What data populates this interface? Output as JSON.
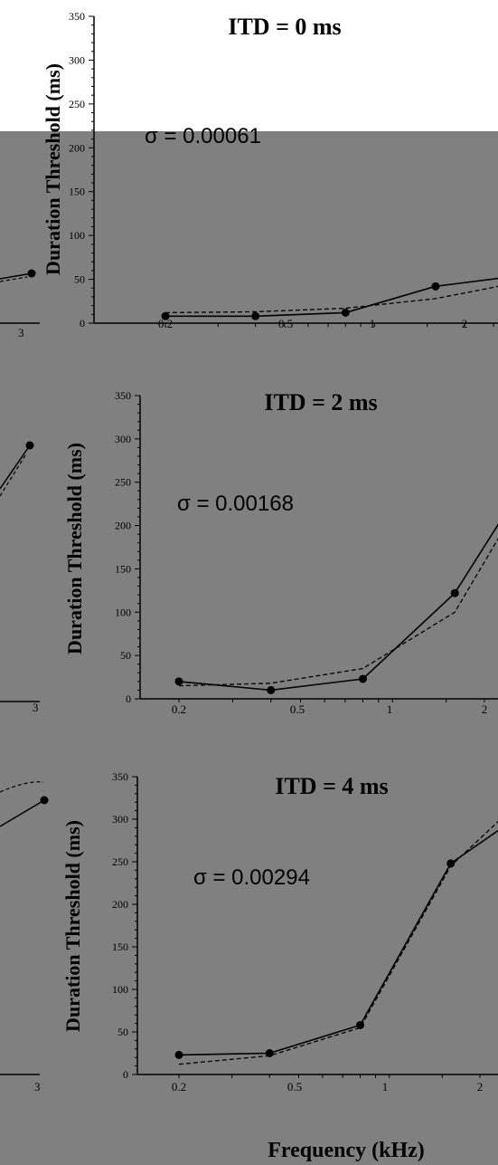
{
  "colors": {
    "panel_bg": "#808080",
    "page_bg": "#ffffff",
    "ink": "#000000"
  },
  "chart_data": [
    {
      "type": "line",
      "title": "ITD = 0 ms",
      "ylabel": "Duration Threshold (ms)",
      "sigma_label": "σ = 0.00061",
      "x_ticks": [
        "0.2",
        "0.5",
        "1",
        "2"
      ],
      "y_ticks": [
        "0",
        "50",
        "100",
        "150",
        "200",
        "250",
        "300",
        "350"
      ],
      "ylim": [
        0,
        350
      ],
      "x_scale": "log",
      "left_fragment_tick": "3",
      "series": [
        {
          "style": "solid",
          "x": [
            0.2,
            0.4,
            0.8,
            1.6,
            3.2
          ],
          "y": [
            8,
            8,
            12,
            42,
            55
          ]
        },
        {
          "style": "dashed",
          "x": [
            0.2,
            0.4,
            0.8,
            1.6,
            3.2
          ],
          "y": [
            12,
            13,
            17,
            28,
            48
          ]
        }
      ]
    },
    {
      "type": "line",
      "title": "ITD = 2 ms",
      "ylabel": "Duration Threshold (ms)",
      "sigma_label": "σ = 0.00168",
      "x_ticks": [
        "0.2",
        "0.5",
        "1",
        "2"
      ],
      "y_ticks": [
        "0",
        "50",
        "100",
        "150",
        "200",
        "250",
        "300",
        "350"
      ],
      "ylim": [
        0,
        350
      ],
      "x_scale": "log",
      "left_fragment_tick": "3",
      "series": [
        {
          "style": "solid",
          "x": [
            0.2,
            0.4,
            0.8,
            1.6,
            3.2
          ],
          "y": [
            20,
            10,
            23,
            122,
            290
          ]
        },
        {
          "style": "dashed",
          "x": [
            0.2,
            0.4,
            0.8,
            1.6,
            3.2
          ],
          "y": [
            15,
            18,
            35,
            100,
            280
          ]
        }
      ]
    },
    {
      "type": "line",
      "title": "ITD = 4 ms",
      "ylabel": "Duration Threshold (ms)",
      "sigma_label": "σ = 0.00294",
      "xlabel": "Frequency (kHz)",
      "x_ticks": [
        "0.2",
        "0.5",
        "1",
        "2"
      ],
      "y_ticks": [
        "0",
        "50",
        "100",
        "150",
        "200",
        "250",
        "300",
        "350"
      ],
      "ylim": [
        0,
        350
      ],
      "x_scale": "log",
      "left_fragment_tick": "3",
      "series": [
        {
          "style": "solid",
          "x": [
            0.2,
            0.4,
            0.8,
            1.6,
            3.2
          ],
          "y": [
            23,
            25,
            58,
            248,
            322
          ]
        },
        {
          "style": "dashed",
          "x": [
            0.2,
            0.4,
            0.8,
            1.6,
            3.2
          ],
          "y": [
            12,
            22,
            55,
            245,
            345
          ]
        }
      ]
    }
  ]
}
